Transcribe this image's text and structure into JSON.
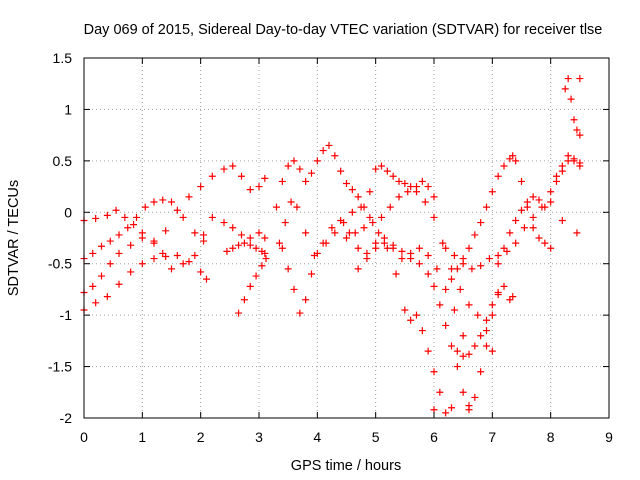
{
  "chart_data": {
    "type": "scatter",
    "title": "Day 069 of 2015, Sidereal Day-to-day VTEC variation (SDTVAR) for receiver tlse",
    "xlabel": "GPS time / hours",
    "ylabel": "SDTVAR / TECUs",
    "xlim": [
      0,
      9
    ],
    "ylim": [
      -2,
      1.5
    ],
    "xticks": [
      "0",
      "1",
      "2",
      "3",
      "4",
      "5",
      "6",
      "7",
      "8",
      "9"
    ],
    "yticks": [
      "-2",
      "-1.5",
      "-1",
      "-0.5",
      "0",
      "0.5",
      "1",
      "1.5"
    ],
    "grid": true,
    "marker": "+",
    "color": "#ff0000",
    "series": [
      {
        "x": [
          0.0,
          0.2,
          0.4,
          0.55,
          0.7,
          0.85,
          1.0,
          1.2,
          1.4,
          1.6,
          1.8,
          2.0,
          2.2,
          2.4,
          2.55,
          2.7,
          2.85,
          3.0,
          3.1
        ],
        "y": [
          -0.08,
          -0.06,
          -0.03,
          0.02,
          -0.05,
          -0.12,
          -0.2,
          -0.28,
          -0.18,
          0.02,
          0.15,
          0.25,
          0.35,
          0.42,
          0.45,
          0.35,
          0.22,
          0.25,
          0.33
        ]
      },
      {
        "x": [
          0.0,
          0.15,
          0.3,
          0.45,
          0.6,
          0.75,
          0.9,
          1.05,
          1.2,
          1.35,
          1.5,
          1.7,
          1.9,
          2.05
        ],
        "y": [
          -0.45,
          -0.4,
          -0.33,
          -0.28,
          -0.22,
          -0.15,
          -0.05,
          0.05,
          0.1,
          0.12,
          0.1,
          -0.05,
          -0.2,
          -0.28
        ]
      },
      {
        "x": [
          0.0,
          0.15,
          0.3,
          0.45,
          0.6,
          0.8,
          1.0,
          1.2,
          1.35,
          1.5,
          1.7,
          1.9,
          2.05,
          2.2,
          2.4,
          2.55,
          2.7,
          2.85,
          3.0,
          3.1
        ],
        "y": [
          -0.78,
          -0.72,
          -0.62,
          -0.5,
          -0.4,
          -0.32,
          -0.25,
          -0.3,
          -0.4,
          -0.55,
          -0.5,
          -0.42,
          -0.22,
          -0.05,
          -0.1,
          -0.15,
          -0.22,
          -0.25,
          -0.2,
          -0.25
        ]
      },
      {
        "x": [
          0.0,
          0.2,
          0.4,
          0.6,
          0.8,
          1.0,
          1.2,
          1.4,
          1.6,
          1.8,
          2.0,
          2.1
        ],
        "y": [
          -0.95,
          -0.88,
          -0.82,
          -0.7,
          -0.58,
          -0.5,
          -0.45,
          -0.43,
          -0.42,
          -0.48,
          -0.58,
          -0.65
        ]
      },
      {
        "x": [
          2.45,
          2.55,
          2.65,
          2.75,
          2.85,
          2.95,
          3.05,
          3.1
        ],
        "y": [
          -0.38,
          -0.35,
          -0.32,
          -0.3,
          -0.32,
          -0.35,
          -0.38,
          -0.4
        ]
      },
      {
        "x": [
          2.65,
          2.75,
          2.85,
          2.95,
          3.05,
          3.12
        ],
        "y": [
          -0.98,
          -0.85,
          -0.72,
          -0.62,
          -0.52,
          -0.45
        ]
      },
      {
        "x": [
          3.3,
          3.4,
          3.5,
          3.6,
          3.7,
          3.8,
          3.9,
          4.0,
          4.1,
          4.2,
          4.3,
          4.4,
          4.5,
          4.6,
          4.7,
          4.8,
          4.9,
          5.0,
          5.1,
          5.2,
          5.3,
          5.4,
          5.5,
          5.6,
          5.7,
          5.8,
          5.9,
          6.0
        ],
        "y": [
          0.05,
          0.3,
          0.45,
          0.5,
          0.42,
          0.3,
          0.38,
          0.5,
          0.6,
          0.65,
          0.55,
          0.4,
          0.28,
          0.22,
          0.15,
          0.05,
          0.2,
          0.42,
          0.45,
          0.4,
          0.35,
          0.3,
          0.28,
          0.25,
          0.25,
          0.3,
          0.25,
          0.15
        ]
      },
      {
        "x": [
          3.4,
          3.5,
          3.6,
          3.7,
          3.8,
          3.9,
          4.0,
          4.15,
          4.3,
          4.45,
          4.6,
          4.75,
          4.9,
          5.05,
          5.2,
          5.35,
          5.5,
          5.6,
          5.7,
          5.8,
          5.9,
          6.0,
          6.1,
          6.2,
          6.3
        ],
        "y": [
          -0.35,
          -0.55,
          -0.75,
          -0.98,
          -0.85,
          -0.6,
          -0.4,
          -0.3,
          -0.2,
          -0.1,
          0.0,
          0.05,
          -0.05,
          -0.2,
          -0.35,
          -0.6,
          -0.95,
          -1.05,
          -1.0,
          -1.15,
          -1.35,
          -1.55,
          -1.75,
          -1.95,
          -1.9
        ]
      },
      {
        "x": [
          3.35,
          3.45,
          3.55,
          3.65,
          3.8,
          3.95,
          4.1,
          4.25,
          4.4,
          4.55,
          4.7,
          4.85,
          5.0,
          5.15,
          5.3,
          5.45,
          5.6,
          5.75,
          5.9,
          6.05,
          6.2,
          6.35,
          6.5
        ],
        "y": [
          -0.3,
          -0.1,
          0.1,
          0.05,
          -0.2,
          -0.42,
          -0.3,
          -0.15,
          -0.08,
          -0.2,
          -0.35,
          -0.4,
          -0.3,
          -0.25,
          -0.35,
          -0.45,
          -0.4,
          -0.35,
          -0.42,
          -0.55,
          -0.75,
          -0.95,
          -1.2
        ]
      },
      {
        "x": [
          4.5,
          4.65,
          4.8,
          4.95,
          5.1,
          5.25,
          5.4,
          5.55,
          5.7,
          5.85,
          6.0,
          6.15,
          6.3,
          6.45,
          6.6,
          6.75,
          6.9,
          7.0
        ],
        "y": [
          -0.25,
          -0.2,
          -0.15,
          -0.1,
          -0.05,
          0.05,
          0.15,
          0.2,
          0.2,
          0.1,
          -0.05,
          -0.3,
          -0.55,
          -0.75,
          -0.9,
          -1.0,
          -1.15,
          -1.35
        ]
      },
      {
        "x": [
          4.7,
          4.85,
          5.0,
          5.15,
          5.3,
          5.45,
          5.6,
          5.75,
          5.9,
          6.0,
          6.1,
          6.2,
          6.3,
          6.4,
          6.5,
          6.6,
          6.7,
          6.8,
          6.9,
          7.0,
          7.1
        ],
        "y": [
          -0.55,
          -0.45,
          -0.35,
          -0.3,
          -0.32,
          -0.38,
          -0.45,
          -0.5,
          -0.6,
          -0.72,
          -0.9,
          -1.1,
          -1.3,
          -1.5,
          -1.75,
          -1.92,
          -1.8,
          -1.55,
          -1.3,
          -1.0,
          -0.8
        ]
      },
      {
        "x": [
          6.3,
          6.4,
          6.5,
          6.6,
          6.7,
          6.8,
          6.9,
          7.0,
          7.1,
          7.2,
          7.3,
          7.35,
          7.4,
          7.5,
          7.6,
          7.7,
          7.8,
          7.9,
          8.0
        ],
        "y": [
          -0.65,
          -0.55,
          -0.45,
          -0.35,
          -0.22,
          -0.1,
          0.05,
          0.2,
          0.35,
          0.45,
          0.52,
          0.55,
          0.5,
          0.3,
          0.05,
          -0.15,
          -0.25,
          -0.3,
          -0.35
        ]
      },
      {
        "x": [
          6.2,
          6.35,
          6.5,
          6.65,
          6.8,
          6.95,
          7.1,
          7.25,
          7.4,
          7.55,
          7.7,
          7.85,
          8.0,
          8.1,
          8.2,
          8.3,
          8.4,
          8.5
        ],
        "y": [
          -0.35,
          -0.42,
          -0.5,
          -0.55,
          -0.52,
          -0.45,
          -0.42,
          -0.38,
          -0.3,
          -0.15,
          -0.05,
          0.05,
          0.2,
          0.35,
          0.45,
          0.5,
          0.52,
          0.48
        ]
      },
      {
        "x": [
          6.4,
          6.5,
          6.6,
          6.7,
          6.8,
          6.9,
          7.0,
          7.1,
          7.2,
          7.3
        ],
        "y": [
          -1.35,
          -1.4,
          -1.38,
          -1.3,
          -1.2,
          -1.05,
          -0.9,
          -0.78,
          -0.72,
          -0.85
        ]
      },
      {
        "x": [
          7.1,
          7.2,
          7.3,
          7.4,
          7.5,
          7.6,
          7.7,
          7.8,
          7.9,
          8.0,
          8.1,
          8.2,
          8.3,
          8.4,
          8.5
        ],
        "y": [
          -0.5,
          -0.35,
          -0.2,
          -0.08,
          0.02,
          0.1,
          0.15,
          0.12,
          0.05,
          0.1,
          0.3,
          0.4,
          0.55,
          0.5,
          0.45
        ]
      },
      {
        "x": [
          8.25,
          8.3,
          8.35,
          8.4,
          8.45,
          8.5
        ],
        "y": [
          1.2,
          1.3,
          1.1,
          0.9,
          0.8,
          0.75
        ]
      },
      {
        "x": [
          6.0,
          6.6,
          7.35,
          8.2,
          8.45,
          8.5
        ],
        "y": [
          -1.92,
          -1.88,
          -0.82,
          -0.08,
          -0.2,
          1.3
        ]
      }
    ]
  }
}
